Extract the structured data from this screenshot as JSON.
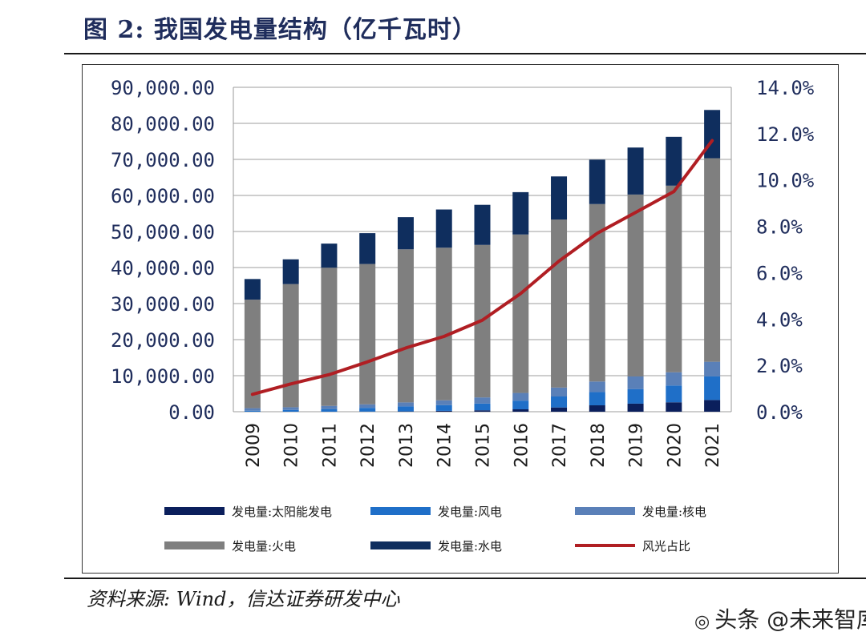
{
  "figure": {
    "title": "图 2: 我国发电量结构（亿千瓦时）",
    "source": "资料来源: Wind，信达证券研发中心",
    "watermark": "头条 @未来智库",
    "watermark_icon": "speech-bubble-icon"
  },
  "chart_data": {
    "type": "bar",
    "stacked": true,
    "title": "我国发电量结构（亿千瓦时）",
    "xlabel": "",
    "ylabel": "",
    "categories": [
      "2009",
      "2010",
      "2011",
      "2012",
      "2013",
      "2014",
      "2015",
      "2016",
      "2017",
      "2018",
      "2019",
      "2020",
      "2021"
    ],
    "ylim": [
      0,
      90000
    ],
    "y2lim": [
      0,
      14
    ],
    "yticks": [
      "90,000.00",
      "80,000.00",
      "70,000.00",
      "60,000.00",
      "50,000.00",
      "40,000.00",
      "30,000.00",
      "20,000.00",
      "10,000.00",
      "0.00"
    ],
    "y2ticks": [
      "14.0%",
      "12.0%",
      "10.0%",
      "8.0%",
      "6.0%",
      "4.0%",
      "2.0%",
      "0.0%"
    ],
    "grid": true,
    "legend_position": "bottom",
    "series": [
      {
        "name": "发电量:太阳能发电",
        "color": "#0b1f5c",
        "values": [
          3,
          2,
          6,
          36,
          84,
          235,
          395,
          665,
          1178,
          1775,
          2238,
          2611,
          3259
        ]
      },
      {
        "name": "发电量:风电",
        "color": "#1f6fc8",
        "values": [
          276,
          494,
          741,
          1030,
          1383,
          1598,
          1856,
          2409,
          3046,
          3658,
          4057,
          4665,
          6526
        ]
      },
      {
        "name": "发电量:核电",
        "color": "#5a80b8",
        "values": [
          700,
          747,
          874,
          983,
          1115,
          1332,
          1714,
          2132,
          2481,
          2944,
          3487,
          3662,
          4075
        ]
      },
      {
        "name": "发电量:火电",
        "color": "#7f7f7f",
        "values": [
          30117,
          34166,
          38337,
          38928,
          42470,
          42337,
          42307,
          43958,
          46627,
          49231,
          50465,
          51770,
          56463
        ]
      },
      {
        "name": "发电量:水电",
        "color": "#0f2e5e",
        "values": [
          5717,
          6867,
          6681,
          8556,
          8921,
          10601,
          11127,
          11748,
          11945,
          12321,
          13044,
          13552,
          13390
        ]
      }
    ],
    "line_series": {
      "name": "风光占比",
      "color": "#b01e23",
      "axis": "right",
      "values": [
        0.75,
        1.2,
        1.6,
        2.15,
        2.75,
        3.25,
        3.95,
        5.1,
        6.5,
        7.7,
        8.6,
        9.5,
        11.7
      ]
    }
  }
}
